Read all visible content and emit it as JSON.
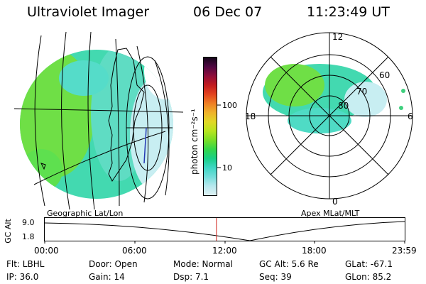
{
  "header": {
    "title": "Ultraviolet Imager",
    "date": "06 Dec 07",
    "time": "11:23:49 UT"
  },
  "geo_panel": {
    "caption": "Geographic Lat/Lon"
  },
  "polar_panel": {
    "caption": "Apex  MLat/MLT",
    "mlt_labels": {
      "top": "12",
      "left": "18",
      "right": "6",
      "bottom": "0"
    },
    "mlat_labels": [
      "80",
      "70",
      "60"
    ]
  },
  "colorbar": {
    "unit_label": "photon cm⁻²s⁻¹",
    "ticks": [
      "100",
      "10"
    ],
    "colors": [
      "#dff1f3",
      "#b7e8ee",
      "#74dedb",
      "#3fd6c4",
      "#19cf86",
      "#33d64a",
      "#7ade27",
      "#b8e51f",
      "#e1d826",
      "#efb22a",
      "#ef7f24",
      "#e3431f",
      "#c21b1f",
      "#8f0d3a",
      "#4f0742",
      "#14061a"
    ]
  },
  "altitude_strip": {
    "y_label": "GC Alt",
    "y_ticks": [
      "9.0",
      "1.8"
    ],
    "x_ticks": [
      "00:00",
      "06:00",
      "12:00",
      "18:00",
      "23:59"
    ],
    "current_time_color": "#d0221b",
    "current_time_fraction": 0.477
  },
  "info": {
    "filter": "Flt: LBHL",
    "ip": "IP: 36.0",
    "door": "Door: Open",
    "gain": "Gain: 14",
    "mode": "Mode:  Normal",
    "dsp": "Dsp:      7.1",
    "gc_alt": "GC Alt: 5.6 Re",
    "seq": "Seq: 39",
    "glat": "GLat:  -67.1",
    "glon": "GLon:  85.2"
  }
}
